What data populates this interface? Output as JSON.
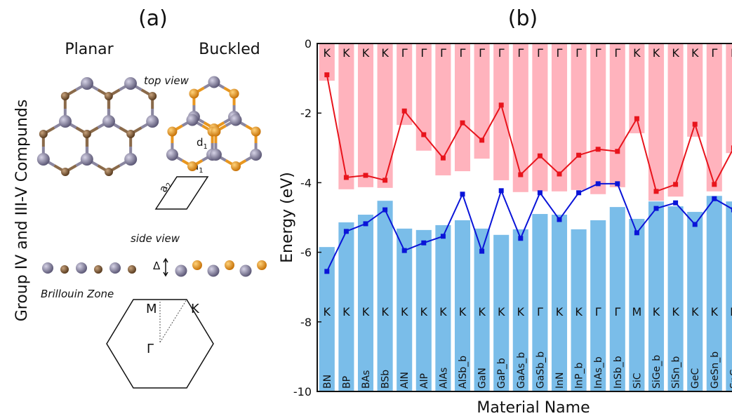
{
  "chart_data": {
    "type": "bar",
    "title": "(b)",
    "ylabel": "Energy (eV)",
    "xlabel": "Material Name",
    "categories": [
      "BN",
      "BP",
      "BAs",
      "BSb",
      "AlN",
      "AlP",
      "AlAs",
      "AlSb_b",
      "GaN",
      "GaP_b",
      "GaAs_b",
      "GaSb_b",
      "InN",
      "InP_b",
      "InAs_b",
      "InSb_b",
      "SiC",
      "SiGe_b",
      "SiSn_b",
      "GeC",
      "GeSn_b",
      "SnC"
    ],
    "ylim": [
      -10,
      0
    ],
    "yticks": [
      0,
      -2,
      -4,
      -6,
      -8,
      -10
    ],
    "series": [
      {
        "type": "bar",
        "anchor": "top",
        "color": "#ffb3bd",
        "values": [
          -1.07,
          -4.19,
          -4.13,
          -4.15,
          -2.34,
          -3.08,
          -3.79,
          -3.67,
          -3.31,
          -3.93,
          -4.27,
          -4.25,
          -4.25,
          -4.21,
          -4.33,
          -4.13,
          -2.58,
          -4.52,
          -4.4,
          -2.68,
          -4.25,
          -3.15
        ],
        "labels": [
          "K",
          "K",
          "K",
          "K",
          "Γ",
          "Γ",
          "Γ",
          "Γ",
          "Γ",
          "Γ",
          "Γ",
          "Γ",
          "Γ",
          "Γ",
          "Γ",
          "Γ",
          "K",
          "K",
          "K",
          "K",
          "Γ",
          "Γ"
        ]
      },
      {
        "type": "bar",
        "anchor": "bottom",
        "color": "#7abde9",
        "values": [
          -5.85,
          -5.14,
          -4.92,
          -4.52,
          -5.32,
          -5.36,
          -5.22,
          -5.08,
          -5.32,
          -5.5,
          -5.34,
          -4.9,
          -4.92,
          -5.34,
          -5.08,
          -4.7,
          -5.04,
          -4.54,
          -4.68,
          -4.84,
          -4.38,
          -4.54
        ],
        "labels": [
          "K",
          "K",
          "K",
          "K",
          "K",
          "K",
          "K",
          "K",
          "K",
          "K",
          "K",
          "Γ",
          "K",
          "K",
          "Γ",
          "Γ",
          "M",
          "K",
          "K",
          "K",
          "K",
          "K"
        ]
      },
      {
        "type": "line",
        "color": "#e8141c",
        "values": [
          -0.9,
          -3.85,
          -3.79,
          -3.93,
          -1.94,
          -2.62,
          -3.29,
          -2.28,
          -2.78,
          -1.77,
          -3.77,
          -3.23,
          -3.75,
          -3.21,
          -3.04,
          -3.1,
          -2.16,
          -4.25,
          -4.05,
          -2.32,
          -4.05,
          -3.0
        ]
      },
      {
        "type": "line",
        "color": "#0a14d8",
        "values": [
          -6.55,
          -5.4,
          -5.18,
          -4.78,
          -5.95,
          -5.73,
          -5.54,
          -4.33,
          -5.97,
          -4.23,
          -5.6,
          -4.29,
          -5.06,
          -4.29,
          -4.03,
          -4.03,
          -5.44,
          -4.74,
          -4.58,
          -5.2,
          -4.46,
          -4.78
        ]
      }
    ]
  },
  "diagram": {
    "panel": "(a)",
    "side_title": "Group IV and III-V Compunds",
    "planar": "Planar",
    "buckled": "Buckled",
    "top_view": "top view",
    "side_view": "side view",
    "brillouin": "Brillouin Zone",
    "d1": {
      "main": "d",
      "sub": "1"
    },
    "a1": {
      "main": "a",
      "sub": "1"
    },
    "a2": {
      "main": "a",
      "sub": "2"
    },
    "delta": "Δ",
    "bz_m": "M",
    "bz_k": "K",
    "bz_gamma": "Γ"
  }
}
